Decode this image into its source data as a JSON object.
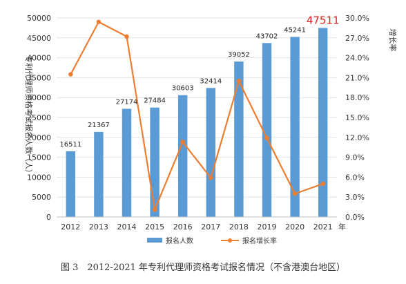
{
  "chart_data": {
    "type": "bar",
    "categories": [
      "2012",
      "2013",
      "2014",
      "2015",
      "2016",
      "2017",
      "2018",
      "2019",
      "2020",
      "2021"
    ],
    "xlabel": "年",
    "ylabel_left": "专利代理师资格考试报名人数（人）",
    "ylabel_right": "增长率",
    "ylim_left": [
      0,
      50000
    ],
    "ylim_right": [
      0,
      30
    ],
    "y_ticks_left": [
      "0",
      "5000",
      "10000",
      "15000",
      "20000",
      "25000",
      "30000",
      "35000",
      "40000",
      "45000",
      "50000"
    ],
    "y_ticks_right": [
      "0.0%",
      "3.0%",
      "6.0%",
      "9.0%",
      "12.0%",
      "15.0%",
      "18.0%",
      "21.0%",
      "24.0%",
      "27.0%",
      "30.0%"
    ],
    "series": [
      {
        "name": "报名人数",
        "kind": "bar",
        "color": "#5b9bd5",
        "values": [
          16511,
          21367,
          27174,
          27484,
          30603,
          32414,
          39052,
          43702,
          45241,
          47511
        ],
        "labels": [
          "16511",
          "21367",
          "27174",
          "27484",
          "30603",
          "32414",
          "39052",
          "43702",
          "45241",
          "47511"
        ],
        "highlight_index": 9,
        "highlight_color": "#d9231d"
      },
      {
        "name": "报名增长率",
        "kind": "line",
        "axis": "right",
        "color": "#ed7d31",
        "values": [
          21.5,
          29.4,
          27.2,
          1.1,
          11.3,
          5.9,
          20.5,
          11.9,
          3.5,
          5.0
        ]
      }
    ],
    "legend_position": "bottom"
  },
  "caption": "图 3　2012-2021 年专利代理师资格考试报名情况（不含港澳台地区）"
}
